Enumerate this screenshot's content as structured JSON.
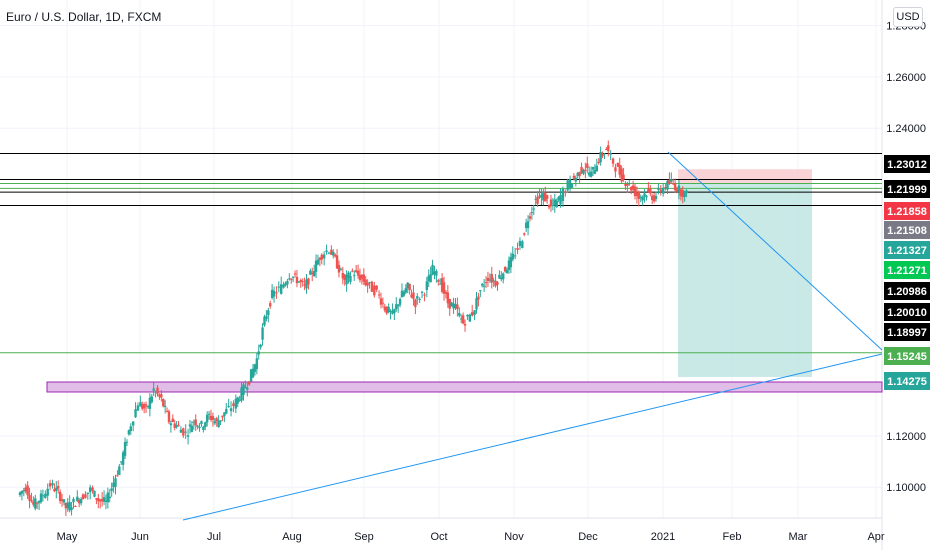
{
  "chart_data": {
    "type": "candlestick",
    "title": "Euro / U.S. Dollar, 1D, FXCM",
    "currency": "USD",
    "ylim": [
      1.088,
      1.29
    ],
    "x_axis_ticks": [
      "May",
      "Jun",
      "Jul",
      "Aug",
      "Sep",
      "Oct",
      "Nov",
      "Dec",
      "2021",
      "Feb",
      "Mar",
      "Apr"
    ],
    "y_axis_ticks": [
      "1.28000",
      "1.26000",
      "1.24000",
      "1.12000",
      "1.10000"
    ],
    "horizontal_levels": [
      {
        "value": 1.23012,
        "label": "1.23012",
        "color": "#000000"
      },
      {
        "value": 1.21999,
        "label": "1.21999",
        "color": "#000000"
      },
      {
        "value": 1.21858,
        "label": "1.21858",
        "color": "#f23645"
      },
      {
        "value": 1.21508,
        "label": "1.21508",
        "color": "#787b86"
      },
      {
        "value": 1.21327,
        "label": "1.21327",
        "color": "#26a69a"
      },
      {
        "value": 1.21271,
        "label": "1.21271",
        "color": "#00c853"
      },
      {
        "value": 1.20986,
        "label": "1.20986",
        "color": "#000000"
      },
      {
        "value": 1.2001,
        "label": "1.20010",
        "color": "#000000"
      },
      {
        "value": 1.18997,
        "label": "1.18997",
        "color": "#000000"
      },
      {
        "value": 1.15245,
        "label": "1.15245",
        "color": "#4caf50"
      },
      {
        "value": 1.14275,
        "label": "1.14275",
        "color": "#26a69a"
      }
    ],
    "colors": {
      "up": "#26a69a",
      "down": "#ef5350",
      "trendline": "#2196f3",
      "zone": "#e1bee7",
      "zone_border": "#9c27b0",
      "green_line": "#4caf50"
    },
    "grid": true,
    "price_series": [
      [
        0,
        1.097
      ],
      [
        0.04,
        1.1
      ],
      [
        0.08,
        1.093
      ],
      [
        0.12,
        1.096
      ],
      [
        0.17,
        1.101
      ],
      [
        0.21,
        1.098
      ],
      [
        0.25,
        1.092
      ],
      [
        0.29,
        1.094
      ],
      [
        0.33,
        1.096
      ],
      [
        0.38,
        1.099
      ],
      [
        0.42,
        1.095
      ],
      [
        0.46,
        1.094
      ],
      [
        0.5,
        1.102
      ],
      [
        0.54,
        1.11
      ],
      [
        0.58,
        1.122
      ],
      [
        0.63,
        1.133
      ],
      [
        0.67,
        1.13
      ],
      [
        0.71,
        1.138
      ],
      [
        0.75,
        1.134
      ],
      [
        0.79,
        1.126
      ],
      [
        0.83,
        1.124
      ],
      [
        0.88,
        1.121
      ],
      [
        0.92,
        1.126
      ],
      [
        0.96,
        1.124
      ],
      [
        1.0,
        1.128
      ],
      [
        1.04,
        1.125
      ],
      [
        1.08,
        1.129
      ],
      [
        1.13,
        1.132
      ],
      [
        1.17,
        1.137
      ],
      [
        1.21,
        1.142
      ],
      [
        1.25,
        1.15
      ],
      [
        1.29,
        1.165
      ],
      [
        1.33,
        1.175
      ],
      [
        1.38,
        1.178
      ],
      [
        1.42,
        1.183
      ],
      [
        1.46,
        1.181
      ],
      [
        1.5,
        1.178
      ],
      [
        1.54,
        1.184
      ],
      [
        1.58,
        1.19
      ],
      [
        1.63,
        1.193
      ],
      [
        1.67,
        1.187
      ],
      [
        1.71,
        1.18
      ],
      [
        1.75,
        1.184
      ],
      [
        1.79,
        1.182
      ],
      [
        1.83,
        1.179
      ],
      [
        1.88,
        1.176
      ],
      [
        1.92,
        1.17
      ],
      [
        1.96,
        1.167
      ],
      [
        2.0,
        1.174
      ],
      [
        2.04,
        1.178
      ],
      [
        2.08,
        1.172
      ],
      [
        2.13,
        1.177
      ],
      [
        2.17,
        1.185
      ],
      [
        2.21,
        1.18
      ],
      [
        2.25,
        1.172
      ],
      [
        2.29,
        1.17
      ],
      [
        2.33,
        1.164
      ],
      [
        2.38,
        1.168
      ],
      [
        2.42,
        1.177
      ],
      [
        2.46,
        1.182
      ],
      [
        2.5,
        1.18
      ],
      [
        2.54,
        1.184
      ],
      [
        2.58,
        1.188
      ],
      [
        2.63,
        1.195
      ],
      [
        2.67,
        1.205
      ],
      [
        2.71,
        1.212
      ],
      [
        2.75,
        1.214
      ],
      [
        2.79,
        1.209
      ],
      [
        2.83,
        1.212
      ],
      [
        2.88,
        1.218
      ],
      [
        2.92,
        1.221
      ],
      [
        2.96,
        1.225
      ],
      [
        3.0,
        1.222
      ],
      [
        3.04,
        1.228
      ],
      [
        3.08,
        1.232
      ],
      [
        3.13,
        1.225
      ],
      [
        3.17,
        1.22
      ],
      [
        3.21,
        1.217
      ],
      [
        3.25,
        1.213
      ],
      [
        3.29,
        1.215
      ],
      [
        3.33,
        1.213
      ],
      [
        3.38,
        1.217
      ],
      [
        3.42,
        1.219
      ],
      [
        3.46,
        1.216
      ],
      [
        3.5,
        1.214
      ]
    ],
    "position": {
      "entry": 1.21858,
      "stop": 1.224,
      "target": 1.143
    }
  }
}
